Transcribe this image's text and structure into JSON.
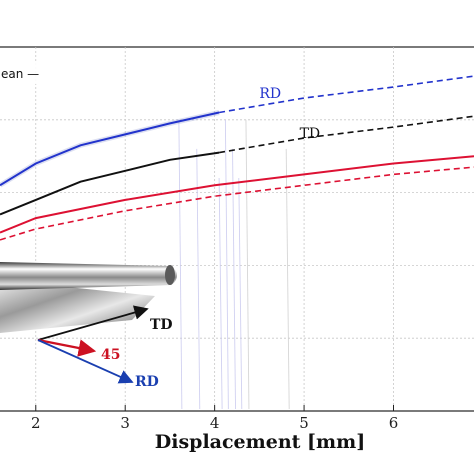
{
  "chart_data": {
    "type": "line",
    "xlabel": "Displacement [mm]",
    "xlim": [
      1.6,
      6.9
    ],
    "ylim": [
      0,
      1
    ],
    "x_ticks": [
      2,
      3,
      4,
      5,
      6
    ],
    "grid": true,
    "legend": {
      "text": "ean —",
      "placement": "top-left"
    },
    "colors": {
      "RD": "#2233cc",
      "TD": "#111111",
      "45": "#dd1133"
    },
    "series": [
      {
        "name": "RD",
        "label_pos": [
          4.5,
          0.86
        ],
        "solid": {
          "x": [
            1.6,
            2.0,
            2.5,
            3.0,
            3.5,
            4.05
          ],
          "y": [
            0.62,
            0.68,
            0.73,
            0.76,
            0.79,
            0.82
          ]
        },
        "dashed": {
          "x": [
            4.05,
            5.0,
            6.0,
            6.9
          ],
          "y": [
            0.82,
            0.86,
            0.89,
            0.92
          ]
        }
      },
      {
        "name": "TD",
        "label_pos": [
          4.95,
          0.75
        ],
        "solid": {
          "x": [
            1.6,
            2.0,
            2.5,
            3.0,
            3.5,
            4.05
          ],
          "y": [
            0.54,
            0.58,
            0.63,
            0.66,
            0.69,
            0.71
          ]
        },
        "dashed": {
          "x": [
            4.05,
            5.0,
            6.0,
            6.9
          ],
          "y": [
            0.71,
            0.75,
            0.78,
            0.81
          ]
        }
      },
      {
        "name": "45",
        "solid": {
          "x": [
            1.6,
            2.0,
            3.0,
            4.0,
            5.0,
            6.0,
            6.9
          ],
          "y": [
            0.49,
            0.53,
            0.58,
            0.62,
            0.65,
            0.68,
            0.7
          ]
        },
        "dashed": {
          "x": [
            1.6,
            2.0,
            3.0,
            4.0,
            5.0,
            6.0,
            6.9
          ],
          "y": [
            0.47,
            0.5,
            0.55,
            0.59,
            0.62,
            0.65,
            0.67
          ]
        }
      }
    ],
    "inset": {
      "labels": {
        "td": "TD",
        "deg45": "45",
        "rd": "RD"
      }
    }
  }
}
